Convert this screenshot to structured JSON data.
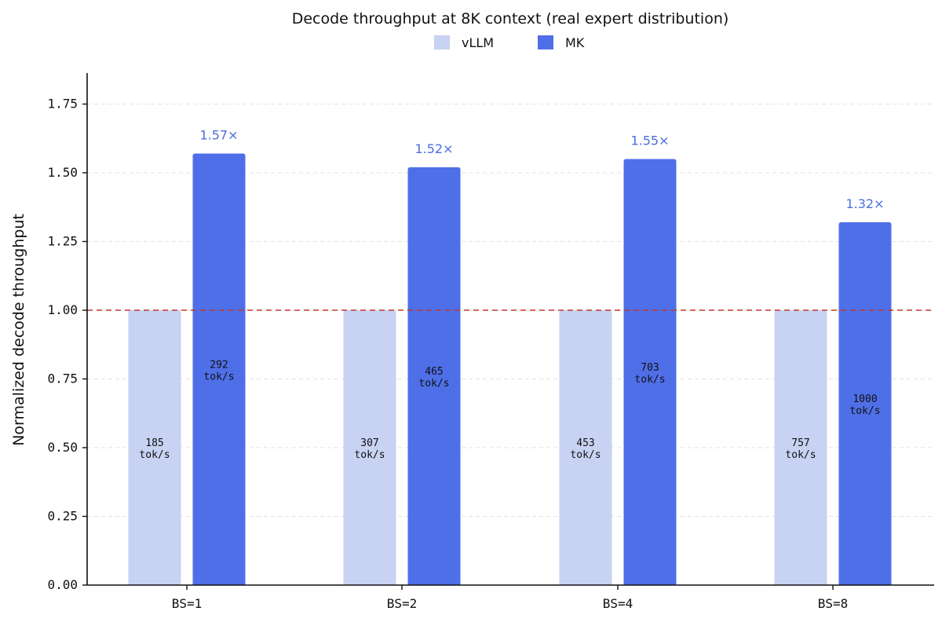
{
  "chart_data": {
    "type": "bar",
    "title": "Decode throughput at 8K context (real expert distribution)",
    "xlabel": "",
    "ylabel": "Normalized decode throughput",
    "ylim": [
      0,
      1.85
    ],
    "yticks": [
      "0.00",
      "0.25",
      "0.50",
      "0.75",
      "1.00",
      "1.25",
      "1.50",
      "1.75"
    ],
    "yticks_values": [
      0,
      0.25,
      0.5,
      0.75,
      1.0,
      1.25,
      1.5,
      1.75
    ],
    "categories": [
      "BS=1",
      "BS=2",
      "BS=4",
      "BS=8"
    ],
    "legend_position": "top-center",
    "grid": "horizontal-dashed",
    "reference_line": {
      "y": 1.0,
      "color": "#c0392b",
      "style": "dashed"
    },
    "series": [
      {
        "name": "vLLM",
        "color": "#c8d2f2",
        "values": [
          1.0,
          1.0,
          1.0,
          1.0
        ],
        "labels": [
          [
            "185",
            "tok/s"
          ],
          [
            "307",
            "tok/s"
          ],
          [
            "453",
            "tok/s"
          ],
          [
            "757",
            "tok/s"
          ]
        ]
      },
      {
        "name": "MK",
        "color": "#4f6fe8",
        "values": [
          1.57,
          1.52,
          1.55,
          1.32
        ],
        "labels": [
          [
            "292",
            "tok/s"
          ],
          [
            "465",
            "tok/s"
          ],
          [
            "703",
            "tok/s"
          ],
          [
            "1000",
            "tok/s"
          ]
        ],
        "annotations": [
          "1.57×",
          "1.52×",
          "1.55×",
          "1.32×"
        ]
      }
    ]
  }
}
